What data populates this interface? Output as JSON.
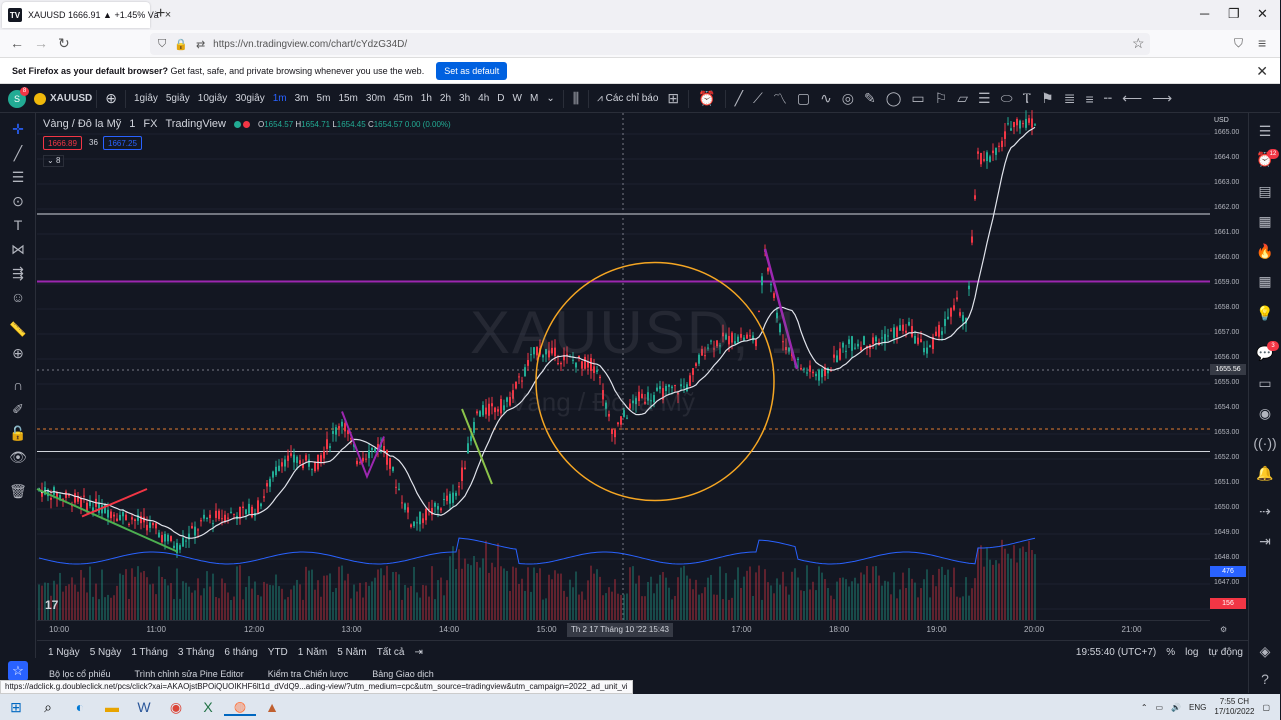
{
  "browser": {
    "tab_title": "XAUUSD 1666.91 ▲ +1.45% Và",
    "tab_favicon": "TV",
    "tab_close": "×",
    "new_tab": "+",
    "url": "https://vn.tradingview.com/chart/cYdzG34D/",
    "min": "─",
    "max": "❐",
    "close": "✕",
    "back": "←",
    "forward": "→",
    "reload": "↻",
    "bookmark_star": "☆",
    "pocket": "⛉",
    "menu": "≡",
    "notification": {
      "bold": "Set Firefox as your default browser?",
      "text": " Get fast, safe, and private browsing whenever you use the web.",
      "button": "Set as default",
      "close": "✕"
    }
  },
  "tv": {
    "avatar": "S",
    "avatar_badge": "8",
    "symbol": "XAUUSD",
    "add": "⊕",
    "intervals": [
      "1giây",
      "5giây",
      "10giây",
      "30giây",
      "1m",
      "3m",
      "5m",
      "15m",
      "30m",
      "45m",
      "1h",
      "2h",
      "3h",
      "4h",
      "D",
      "W",
      "M"
    ],
    "active_interval": "1m",
    "indicators": "Các chỉ báo",
    "legend": {
      "title": "Vàng / Đô la Mỹ",
      "interval": "1",
      "exchange": "FX",
      "provider": "TradingView",
      "o_label": "O",
      "o": "1654.57",
      "h_label": "H",
      "h": "1654.71",
      "l_label": "L",
      "l": "1654.45",
      "c_label": "C",
      "c": "1654.57",
      "chg": "0.00 (0.00%)",
      "bid": "1666.89",
      "spread": "36",
      "ask": "1667.25",
      "indicator_count": "8"
    },
    "watermark_symbol": "XAUUSD, 1",
    "watermark_name": "Vàng / Đô la Mỹ",
    "currency": "USD",
    "price_labels": [
      "1665.00",
      "1664.00",
      "1663.00",
      "1662.00",
      "1661.00",
      "1660.00",
      "1659.00",
      "1658.00",
      "1657.00",
      "1656.00",
      "1655.00",
      "1654.00",
      "1653.00",
      "1652.00",
      "1651.00",
      "1650.00",
      "1649.00",
      "1648.00",
      "1647.00",
      "1646.00"
    ],
    "crosshair_price": "1655.56",
    "vol_tag_blue": "476",
    "vol_tag_red": "156",
    "time_labels": [
      "10:00",
      "11:00",
      "12:00",
      "13:00",
      "14:00",
      "15:00",
      "17:00",
      "18:00",
      "19:00",
      "20:00",
      "21:00"
    ],
    "crosshair_time": "Th 2 17 Tháng 10 '22   15:43",
    "ranges": [
      "1 Ngày",
      "5 Ngày",
      "1 Tháng",
      "3 Tháng",
      "6 tháng",
      "YTD",
      "1 Năm",
      "5 Năm",
      "Tất cả"
    ],
    "clock": "19:55:40 (UTC+7)",
    "pct": "%",
    "log": "log",
    "auto": "tự động",
    "bottom_tabs": [
      "Bộ lọc cổ phiếu",
      "Trình chỉnh sửa Pine Editor",
      "Kiểm tra Chiến lược",
      "Bảng Giao dịch"
    ]
  },
  "status_url": "https://adclick.g.doubleclick.net/pcs/click?xai=AKAOjstBPOiQUOIKHF6lt1d_dVdQ9...ading-view/?utm_medium=cpc&utm_source=tradingview&utm_campaign=2022_ad_unit_vi",
  "taskbar": {
    "lang": "ENG",
    "time": "7:55 CH",
    "date": "17/10/2022"
  },
  "colors": {
    "bg": "#131722",
    "up": "#22ab94",
    "down": "#f23645",
    "accent": "#2962ff",
    "magenta": "#9c27b0",
    "circle": "#f5a623"
  }
}
